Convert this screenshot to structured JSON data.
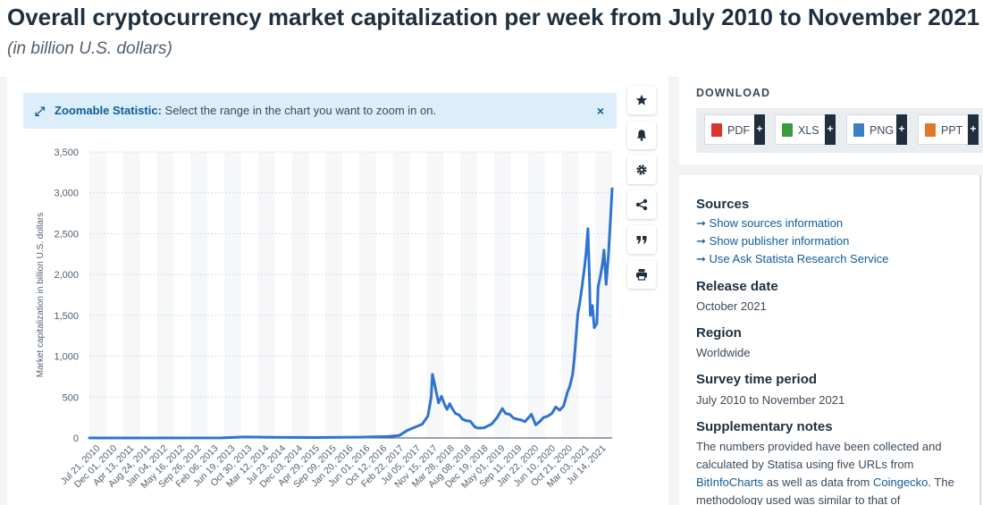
{
  "header": {
    "title": "Overall cryptocurrency market capitalization per week from July 2010 to November 2021",
    "subtitle": "(in billion U.S. dollars)"
  },
  "zoom_notice": {
    "label": "Zoomable Statistic:",
    "text": "Select the range in the chart you want to zoom in on.",
    "icon": "expand-arrows-icon",
    "close": "×"
  },
  "tools": [
    "star-icon",
    "bell-icon",
    "gear-icon",
    "share-icon",
    "quote-icon",
    "print-icon"
  ],
  "download": {
    "title": "DOWNLOAD",
    "buttons": [
      {
        "label": "PDF",
        "plus": "+",
        "color": "#d9362b"
      },
      {
        "label": "XLS",
        "plus": "+",
        "color": "#3c9a3e"
      },
      {
        "label": "PNG",
        "plus": "+",
        "color": "#3a7fc2"
      },
      {
        "label": "PPT",
        "plus": "+",
        "color": "#e4762b"
      }
    ]
  },
  "info": {
    "sources_title": "Sources",
    "links": [
      "Show sources information",
      "Show publisher information",
      "Use Ask Statista Research Service"
    ],
    "release_title": "Release date",
    "release_value": "October 2021",
    "region_title": "Region",
    "region_value": "Worldwide",
    "survey_title": "Survey time period",
    "survey_value": "July 2010 to November 2021",
    "notes_title": "Supplementary notes",
    "notes_line1": "The numbers provided have been collected and",
    "notes_line2": "calculated by Statisa using five URLs from",
    "notes_link1": "BitInfoCharts",
    "notes_mid": " as well as data from ",
    "notes_link2": "Coingecko",
    "notes_end": ". The",
    "notes_line4": "methodology used was similar to that of"
  },
  "chart_data": {
    "type": "line",
    "title": "Overall cryptocurrency market capitalization per week from July 2010 to November 2021",
    "ylabel": "Market capitalization in billion U.S. dollars",
    "xlabel": "",
    "ylim": [
      0,
      3500
    ],
    "yticks": [
      0,
      500,
      1000,
      1500,
      2000,
      2500,
      3000,
      3500
    ],
    "ytick_labels": [
      "0",
      "500",
      "1,000",
      "1,500",
      "2,000",
      "2,500",
      "3,000",
      "3,500"
    ],
    "xtick_labels": [
      "Jul 21, 2010",
      "Dec 01, 2010",
      "Apr 13, 2011",
      "Aug 24, 2011",
      "Jan 04, 2012",
      "May 16, 2012",
      "Sep 26, 2012",
      "Feb 06, 2013",
      "Jun 19, 2013",
      "Oct 30, 2013",
      "Mar 12, 2014",
      "Jul 23, 2014",
      "Dec 03, 2014",
      "Apr 29, 2015",
      "Sep 09, 2015",
      "Jan 20, 2016",
      "Jun 01, 2016",
      "Oct 12, 2016",
      "Feb 22, 2017",
      "Jul 05, 2017",
      "Nov 15, 2017",
      "Mar 28, 2018",
      "Aug 08, 2018",
      "Dec 19, 2018",
      "May 01, 2019",
      "Sep 11, 2019",
      "Jan 22, 2020",
      "Jun 10, 2020",
      "Oct 21, 2020",
      "Mar 03, 2021",
      "Jul 14, 2021"
    ],
    "grid": true,
    "legend": "none",
    "line_color": "#2f73d0",
    "series": [
      {
        "x": [
          "2010-07-21",
          "2013-06-01",
          "2013-12-01",
          "2014-06-01",
          "2015-06-01",
          "2016-06-01",
          "2017-01-01",
          "2017-04-01",
          "2017-06-01",
          "2017-08-01",
          "2017-10-01",
          "2017-11-15",
          "2017-12-10",
          "2017-12-20",
          "2018-01-07",
          "2018-01-25",
          "2018-02-06",
          "2018-03-01",
          "2018-03-28",
          "2018-04-15",
          "2018-05-05",
          "2018-05-25",
          "2018-06-20",
          "2018-07-20",
          "2018-08-15",
          "2018-09-15",
          "2018-10-15",
          "2018-11-20",
          "2018-12-15",
          "2019-02-01",
          "2019-04-01",
          "2019-05-15",
          "2019-06-25",
          "2019-07-20",
          "2019-08-20",
          "2019-09-25",
          "2019-10-20",
          "2019-11-20",
          "2019-12-20",
          "2020-02-10",
          "2020-03-15",
          "2020-04-15",
          "2020-05-15",
          "2020-06-15",
          "2020-07-20",
          "2020-08-20",
          "2020-09-20",
          "2020-10-21",
          "2020-11-20",
          "2020-12-10",
          "2020-12-31",
          "2021-01-15",
          "2021-02-10",
          "2021-02-25",
          "2021-03-15",
          "2021-04-05",
          "2021-04-15",
          "2021-05-01",
          "2021-05-12",
          "2021-05-20",
          "2021-06-05",
          "2021-06-20",
          "2021-07-10",
          "2021-07-20",
          "2021-08-10",
          "2021-08-25",
          "2021-09-05",
          "2021-09-22",
          "2021-10-10",
          "2021-10-25",
          "2021-11-08"
        ],
        "values": [
          0,
          1,
          12,
          8,
          5,
          10,
          18,
          30,
          90,
          130,
          170,
          270,
          500,
          780,
          650,
          520,
          430,
          510,
          400,
          350,
          420,
          360,
          300,
          280,
          230,
          210,
          205,
          135,
          120,
          125,
          170,
          250,
          360,
          300,
          290,
          240,
          230,
          220,
          200,
          290,
          160,
          200,
          250,
          265,
          300,
          380,
          340,
          390,
          560,
          640,
          780,
          1000,
          1520,
          1650,
          1850,
          2100,
          2250,
          2560,
          2000,
          1500,
          1620,
          1350,
          1400,
          1850,
          2000,
          2150,
          2300,
          1880,
          2250,
          2650,
          3050
        ]
      }
    ]
  }
}
